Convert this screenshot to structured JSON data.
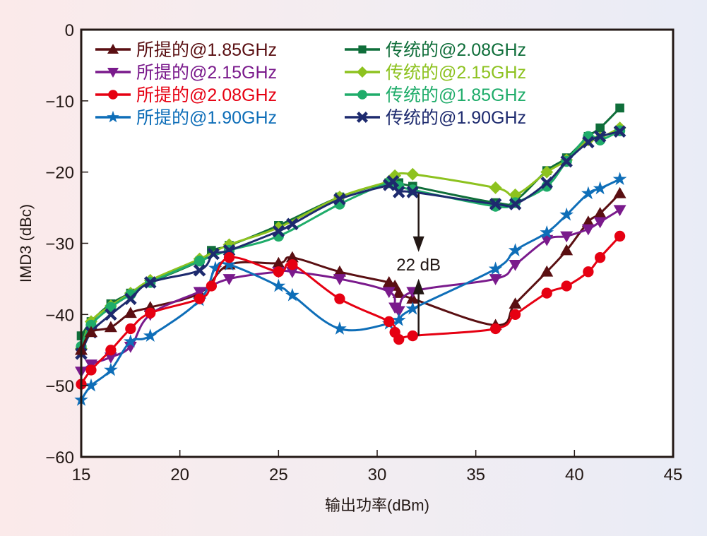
{
  "chart_data": {
    "type": "line",
    "title": "",
    "xlabel": "输出功率(dBm)",
    "ylabel": "IMD3 (dBc)",
    "xlim": [
      15,
      45
    ],
    "ylim": [
      -60,
      0
    ],
    "xticks": [
      15,
      20,
      25,
      30,
      35,
      40,
      45
    ],
    "yticks": [
      0,
      -10,
      -20,
      -30,
      -40,
      -50,
      -60
    ],
    "ytick_labels": [
      "0",
      "−10",
      "−20",
      "−30",
      "−40",
      "−50",
      "−60"
    ],
    "grid": false,
    "legend_position": "top",
    "annotation": {
      "text": "22 dB",
      "x": 32.1,
      "y_top": -23.0,
      "y_bottom": -43.0
    },
    "series": [
      {
        "name": "所提的@1.85GHz",
        "color": "#5a0f12",
        "marker": "triangle-up",
        "x": [
          15.0,
          15.5,
          16.5,
          17.5,
          18.5,
          21.0,
          22.5,
          25.0,
          25.7,
          28.1,
          30.6,
          30.9,
          31.1,
          31.8,
          36.0,
          37.0,
          38.6,
          39.6,
          40.7,
          41.3,
          42.3
        ],
        "y": [
          -45.0,
          -42.5,
          -41.8,
          -39.8,
          -39.0,
          -37.0,
          -33.0,
          -32.8,
          -32.0,
          -34.0,
          -35.5,
          -36.0,
          -37.0,
          -37.8,
          -41.5,
          -38.5,
          -34.0,
          -31.0,
          -27.0,
          -25.8,
          -23.0
        ]
      },
      {
        "name": "所提的@2.15GHz",
        "color": "#7a1a8c",
        "marker": "triangle-down",
        "x": [
          15.0,
          15.5,
          16.5,
          17.5,
          18.5,
          21.0,
          22.5,
          25.0,
          25.7,
          28.1,
          30.6,
          30.9,
          31.1,
          31.8,
          36.0,
          37.0,
          38.6,
          39.6,
          40.7,
          41.3,
          42.3
        ],
        "y": [
          -48.0,
          -47.0,
          -46.0,
          -44.5,
          -40.0,
          -36.8,
          -35.0,
          -34.0,
          -34.0,
          -35.0,
          -36.8,
          -39.0,
          -39.5,
          -36.8,
          -35.0,
          -33.0,
          -29.5,
          -29.0,
          -28.0,
          -27.0,
          -25.3
        ]
      },
      {
        "name": "所提的@2.08GHz",
        "color": "#e60012",
        "marker": "circle",
        "x": [
          15.0,
          15.5,
          16.5,
          17.5,
          18.5,
          21.0,
          21.6,
          22.5,
          25.0,
          25.7,
          28.1,
          30.6,
          30.9,
          31.1,
          31.8,
          36.0,
          37.0,
          38.6,
          39.6,
          40.7,
          41.3,
          42.3
        ],
        "y": [
          -49.8,
          -47.8,
          -45.0,
          -42.0,
          -39.8,
          -37.8,
          -36.0,
          -32.0,
          -34.0,
          -33.0,
          -37.8,
          -41.0,
          -42.5,
          -43.5,
          -43.0,
          -42.0,
          -40.0,
          -37.0,
          -36.0,
          -34.0,
          -32.0,
          -29.0
        ]
      },
      {
        "name": "所提的@1.90GHz",
        "color": "#0e6eb8",
        "marker": "star",
        "x": [
          15.0,
          15.5,
          16.5,
          17.5,
          18.5,
          21.0,
          21.8,
          22.5,
          25.0,
          25.7,
          28.1,
          30.6,
          31.1,
          31.8,
          36.0,
          37.0,
          38.6,
          39.6,
          40.7,
          41.3,
          42.3
        ],
        "y": [
          -52.0,
          -50.0,
          -47.8,
          -43.8,
          -43.0,
          -38.0,
          -33.5,
          -33.0,
          -36.0,
          -37.3,
          -42.0,
          -41.3,
          -40.8,
          -39.2,
          -33.6,
          -31.0,
          -28.5,
          -26.0,
          -23.0,
          -22.3,
          -21.0
        ]
      },
      {
        "name": "传统的@2.08GHz",
        "color": "#0f6e3a",
        "marker": "square",
        "x": [
          15.0,
          15.5,
          16.5,
          17.5,
          18.5,
          21.0,
          21.6,
          22.5,
          25.0,
          28.1,
          30.6,
          31.1,
          31.8,
          36.0,
          37.0,
          38.6,
          39.6,
          40.7,
          41.3,
          42.3
        ],
        "y": [
          -43.0,
          -41.0,
          -38.5,
          -37.0,
          -35.5,
          -32.5,
          -31.0,
          -30.3,
          -27.5,
          -23.5,
          -21.5,
          -21.5,
          -22.0,
          -24.3,
          -24.0,
          -19.8,
          -18.0,
          -15.0,
          -13.8,
          -11.0
        ]
      },
      {
        "name": "传统的@2.15GHz",
        "color": "#8dc21f",
        "marker": "diamond",
        "x": [
          15.0,
          15.5,
          16.5,
          17.5,
          18.5,
          21.0,
          22.5,
          25.0,
          28.1,
          30.6,
          30.9,
          31.8,
          36.0,
          37.0,
          38.6,
          39.6,
          40.7,
          41.3,
          42.3
        ],
        "y": [
          -44.8,
          -41.0,
          -38.8,
          -37.0,
          -35.2,
          -32.2,
          -30.2,
          -27.8,
          -23.5,
          -21.3,
          -20.5,
          -20.3,
          -22.2,
          -23.2,
          -20.0,
          -18.3,
          -15.5,
          -15.2,
          -13.8
        ]
      },
      {
        "name": "传统的@1.85GHz",
        "color": "#1fac6a",
        "marker": "circle",
        "x": [
          15.0,
          15.5,
          16.5,
          17.5,
          18.5,
          21.0,
          22.5,
          25.0,
          28.1,
          30.6,
          31.1,
          31.8,
          36.0,
          37.0,
          38.6,
          39.6,
          40.7,
          41.3,
          42.3
        ],
        "y": [
          -44.5,
          -41.5,
          -39.0,
          -37.2,
          -35.5,
          -32.5,
          -31.0,
          -29.0,
          -24.5,
          -21.5,
          -22.0,
          -22.5,
          -24.8,
          -24.3,
          -22.0,
          -18.5,
          -15.0,
          -15.5,
          -14.2
        ]
      },
      {
        "name": "传统的@1.90GHz",
        "color": "#1d2a6e",
        "marker": "x",
        "x": [
          15.0,
          15.5,
          16.5,
          17.5,
          18.5,
          21.0,
          21.7,
          22.5,
          25.0,
          25.7,
          28.1,
          30.6,
          30.8,
          31.1,
          31.8,
          36.0,
          37.0,
          38.6,
          39.6,
          40.7,
          41.3,
          42.3
        ],
        "y": [
          -45.5,
          -42.5,
          -40.0,
          -37.8,
          -35.5,
          -33.8,
          -31.5,
          -31.0,
          -28.3,
          -27.3,
          -23.8,
          -21.8,
          -21.3,
          -22.8,
          -22.8,
          -24.5,
          -24.5,
          -21.5,
          -18.5,
          -15.8,
          -15.0,
          -14.3
        ]
      }
    ]
  }
}
